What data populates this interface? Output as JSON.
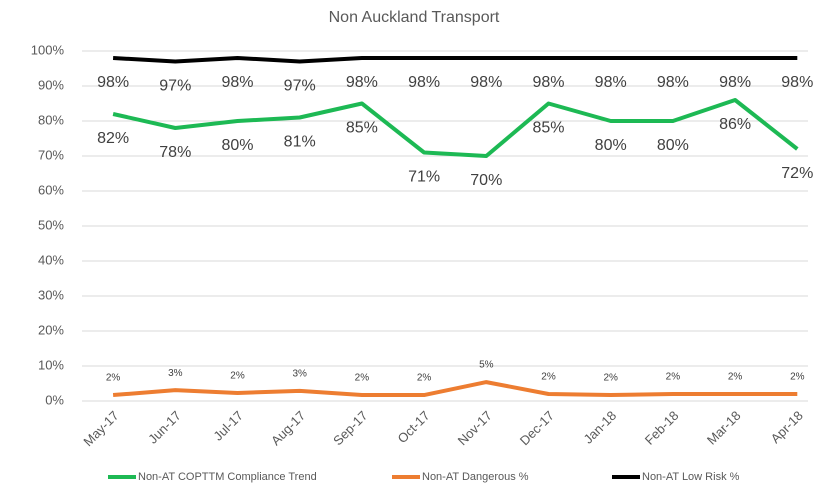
{
  "chart_data": {
    "type": "line",
    "title": "Non Auckland Transport",
    "categories": [
      "May-17",
      "Jun-17",
      "Jul-17",
      "Aug-17",
      "Sep-17",
      "Oct-17",
      "Nov-17",
      "Dec-17",
      "Jan-18",
      "Feb-18",
      "Mar-18",
      "Apr-18"
    ],
    "series": [
      {
        "name": "Non-AT COPTTM Compliance Trend",
        "color": "#1db954",
        "values": [
          82,
          78,
          80,
          81,
          85,
          71,
          70,
          85,
          80,
          80,
          86,
          72
        ],
        "value_labels": [
          "82%",
          "78%",
          "80%",
          "81%",
          "85%",
          "71%",
          "70%",
          "85%",
          "80%",
          "80%",
          "86%",
          "72%"
        ]
      },
      {
        "name": "Non-AT Dangerous %",
        "color": "#ed7d31",
        "values": [
          1.7,
          3.1,
          2.3,
          2.9,
          1.7,
          1.7,
          5.4,
          2.0,
          1.7,
          2.0,
          2.0,
          2.0
        ],
        "value_labels": [
          "2%",
          "3%",
          "2%",
          "3%",
          "2%",
          "2%",
          "5%",
          "2%",
          "2%",
          "2%",
          "2%",
          "2%"
        ]
      },
      {
        "name": "Non-AT Low Risk %",
        "color": "#000000",
        "values": [
          98,
          97,
          98,
          97,
          98,
          98,
          98,
          98,
          98,
          98,
          98,
          98
        ],
        "value_labels": [
          "98%",
          "97%",
          "98%",
          "97%",
          "98%",
          "98%",
          "98%",
          "98%",
          "98%",
          "98%",
          "98%",
          "98%"
        ]
      }
    ],
    "ylim": [
      0,
      100
    ],
    "yticks": [
      {
        "value": 0,
        "label": "0%"
      },
      {
        "value": 10,
        "label": "10%"
      },
      {
        "value": 20,
        "label": "20%"
      },
      {
        "value": 30,
        "label": "30%"
      },
      {
        "value": 40,
        "label": "40%"
      },
      {
        "value": 50,
        "label": "50%"
      },
      {
        "value": 60,
        "label": "60%"
      },
      {
        "value": 70,
        "label": "70%"
      },
      {
        "value": 80,
        "label": "80%"
      },
      {
        "value": 90,
        "label": "90%"
      },
      {
        "value": 100,
        "label": "100%"
      }
    ],
    "grid": true,
    "legend": "bottom"
  }
}
